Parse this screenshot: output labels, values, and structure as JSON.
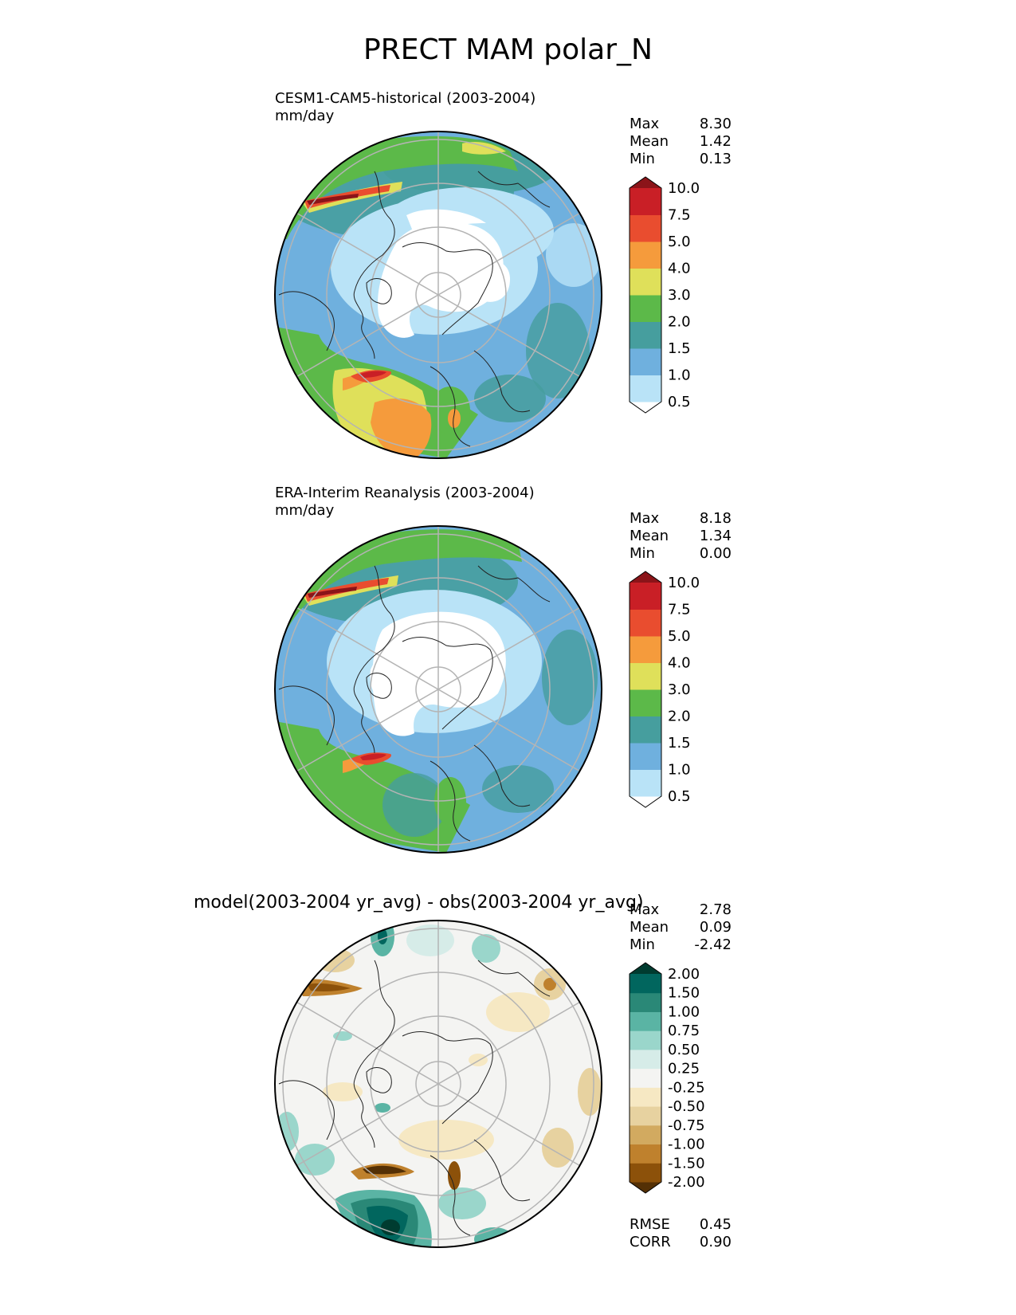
{
  "title": "PRECT MAM polar_N",
  "chart_data": [
    {
      "type": "heatmap",
      "projection": "north polar stereographic",
      "title": "CESM1-CAM5-historical (2003-2004)",
      "units": "mm/day",
      "stats": {
        "max_label": "Max",
        "max": "8.30",
        "mean_label": "Mean",
        "mean": "1.42",
        "min_label": "Min",
        "min": "0.13"
      },
      "colorbar": {
        "levels": [
          "0.5",
          "1.0",
          "1.5",
          "2.0",
          "3.0",
          "4.0",
          "5.0",
          "7.5",
          "10.0"
        ],
        "colors": [
          "#ffffff",
          "#b9e3f7",
          "#6fb0de",
          "#469e9e",
          "#5cb949",
          "#dfe05a",
          "#f59b3c",
          "#e94d2f",
          "#c91f26",
          "#8b1419"
        ]
      }
    },
    {
      "type": "heatmap",
      "projection": "north polar stereographic",
      "title": "ERA-Interim Reanalysis (2003-2004)",
      "units": "mm/day",
      "stats": {
        "max_label": "Max",
        "max": "8.18",
        "mean_label": "Mean",
        "mean": "1.34",
        "min_label": "Min",
        "min": "0.00"
      },
      "colorbar": {
        "levels": [
          "0.5",
          "1.0",
          "1.5",
          "2.0",
          "3.0",
          "4.0",
          "5.0",
          "7.5",
          "10.0"
        ],
        "colors": [
          "#ffffff",
          "#b9e3f7",
          "#6fb0de",
          "#469e9e",
          "#5cb949",
          "#dfe05a",
          "#f59b3c",
          "#e94d2f",
          "#c91f26",
          "#8b1419"
        ]
      }
    },
    {
      "type": "heatmap",
      "projection": "north polar stereographic",
      "title": "model(2003-2004 yr_avg) - obs(2003-2004 yr_avg)",
      "stats": {
        "max_label": "Max",
        "max": "2.78",
        "mean_label": "Mean",
        "mean": "0.09",
        "min_label": "Min",
        "min": "-2.42"
      },
      "metrics": {
        "rmse_label": "RMSE",
        "rmse": "0.45",
        "corr_label": "CORR",
        "corr": "0.90"
      },
      "colorbar": {
        "levels": [
          "-2.00",
          "-1.50",
          "-1.00",
          "-0.75",
          "-0.50",
          "-0.25",
          "0.25",
          "0.50",
          "0.75",
          "1.00",
          "1.50",
          "2.00"
        ],
        "colors": [
          "#543005",
          "#8c510a",
          "#bf812d",
          "#d2aa60",
          "#e7d2a0",
          "#f6e8c3",
          "#f4f4f2",
          "#d6ece8",
          "#9ad6cb",
          "#5ab4a4",
          "#2a8877",
          "#01665e",
          "#003c30"
        ]
      }
    }
  ]
}
